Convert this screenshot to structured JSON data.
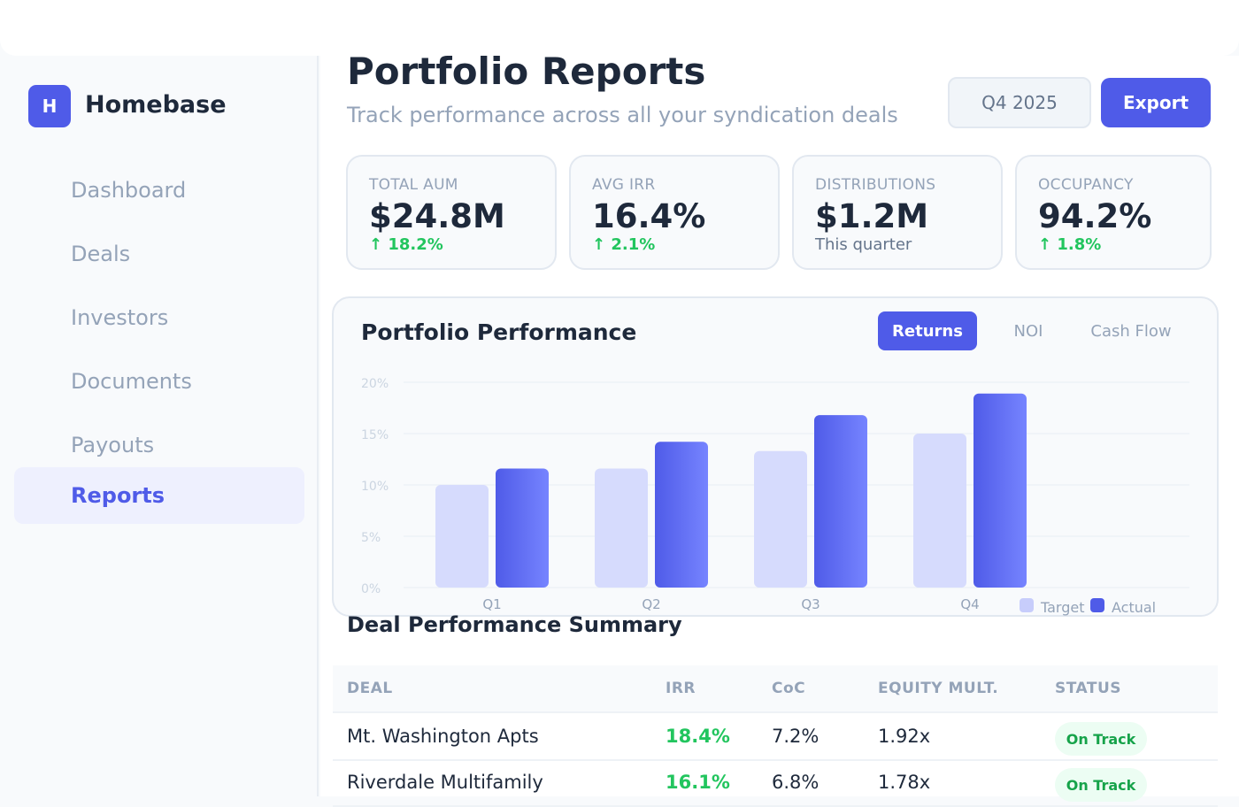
{
  "app": {
    "name": "Homebase",
    "logo_letter": "H"
  },
  "sidebar": {
    "items": [
      {
        "label": "Dashboard",
        "active": false
      },
      {
        "label": "Deals",
        "active": false
      },
      {
        "label": "Investors",
        "active": false
      },
      {
        "label": "Documents",
        "active": false
      },
      {
        "label": "Payouts",
        "active": false
      },
      {
        "label": "Reports",
        "active": true
      }
    ]
  },
  "header": {
    "title": "Portfolio Reports",
    "subtitle": "Track performance across all your syndication deals",
    "period": "Q4 2025",
    "export_label": "Export"
  },
  "metrics": [
    {
      "label": "TOTAL AUM",
      "value": "$24.8M",
      "change": "↑ 18.2%"
    },
    {
      "label": "AVG IRR",
      "value": "16.4%",
      "change": "↑ 2.1%"
    },
    {
      "label": "DISTRIBUTIONS",
      "value": "$1.2M",
      "change": "This quarter"
    },
    {
      "label": "OCCUPANCY",
      "value": "94.2%",
      "change": "↑ 1.8%"
    }
  ],
  "performance": {
    "title": "Portfolio Performance",
    "tabs": [
      "Returns",
      "NOI",
      "Cash Flow"
    ],
    "active_tab": "Returns"
  },
  "chart_data": {
    "type": "bar",
    "categories": [
      "Q1",
      "Q2",
      "Q3",
      "Q4"
    ],
    "series": [
      {
        "name": "Target",
        "values": [
          10,
          11.6,
          13.3,
          15
        ],
        "color": "#d6dbfd"
      },
      {
        "name": "Actual",
        "values": [
          11.6,
          14.2,
          16.8,
          18.9
        ],
        "color": "#5b67f0"
      }
    ],
    "ylim": [
      0,
      20
    ],
    "yticks": [
      "0%",
      "5%",
      "10%",
      "15%",
      "20%"
    ],
    "grid": true,
    "legend": "bottom-right"
  },
  "table": {
    "title": "Deal Performance Summary",
    "columns": [
      "DEAL",
      "IRR",
      "CoC",
      "EQUITY MULT.",
      "STATUS"
    ],
    "rows": [
      {
        "deal": "Mt. Washington Apts",
        "irr": "18.4%",
        "coc": "7.2%",
        "mult": "1.92x",
        "status": "On Track"
      },
      {
        "deal": "Riverdale Multifamily",
        "irr": "16.1%",
        "coc": "6.8%",
        "mult": "1.78x",
        "status": "On Track"
      }
    ]
  },
  "colors": {
    "accent": "#4f5be8",
    "positive": "#22c55e"
  }
}
